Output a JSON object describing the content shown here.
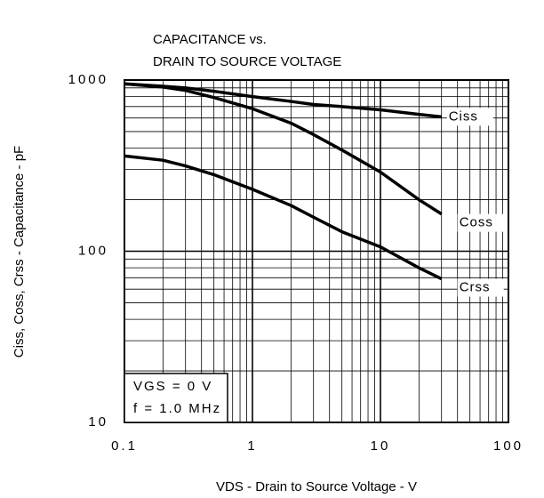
{
  "chart_data": {
    "type": "line",
    "title": [
      "CAPACITANCE vs.",
      "DRAIN TO SOURCE VOLTAGE"
    ],
    "x_label": "VDS - Drain to Source Voltage - V",
    "y_label": "Ciss, Coss, Crss - Capacitance - pF",
    "annotations": [
      "VGS = 0 V",
      "f = 1.0 MHz"
    ],
    "x": [
      0.1,
      0.2,
      0.3,
      0.5,
      1,
      2,
      3,
      5,
      10,
      20,
      30
    ],
    "series": [
      {
        "name": "Ciss",
        "color": "#000000",
        "values": [
          950,
          920,
          900,
          860,
          800,
          750,
          720,
          700,
          670,
          630,
          610
        ]
      },
      {
        "name": "Coss",
        "color": "#000000",
        "values": [
          950,
          910,
          870,
          790,
          680,
          560,
          480,
          390,
          290,
          200,
          165
        ]
      },
      {
        "name": "Crss",
        "color": "#000000",
        "values": [
          360,
          340,
          315,
          280,
          230,
          185,
          158,
          130,
          106,
          80,
          69
        ]
      }
    ],
    "xlim": [
      0.1,
      100
    ],
    "ylim": [
      10,
      1000
    ],
    "xticks": [
      0.1,
      1,
      10,
      100
    ],
    "yticks": [
      10,
      100,
      1000
    ],
    "xscale": "log",
    "yscale": "log",
    "grid": true
  }
}
